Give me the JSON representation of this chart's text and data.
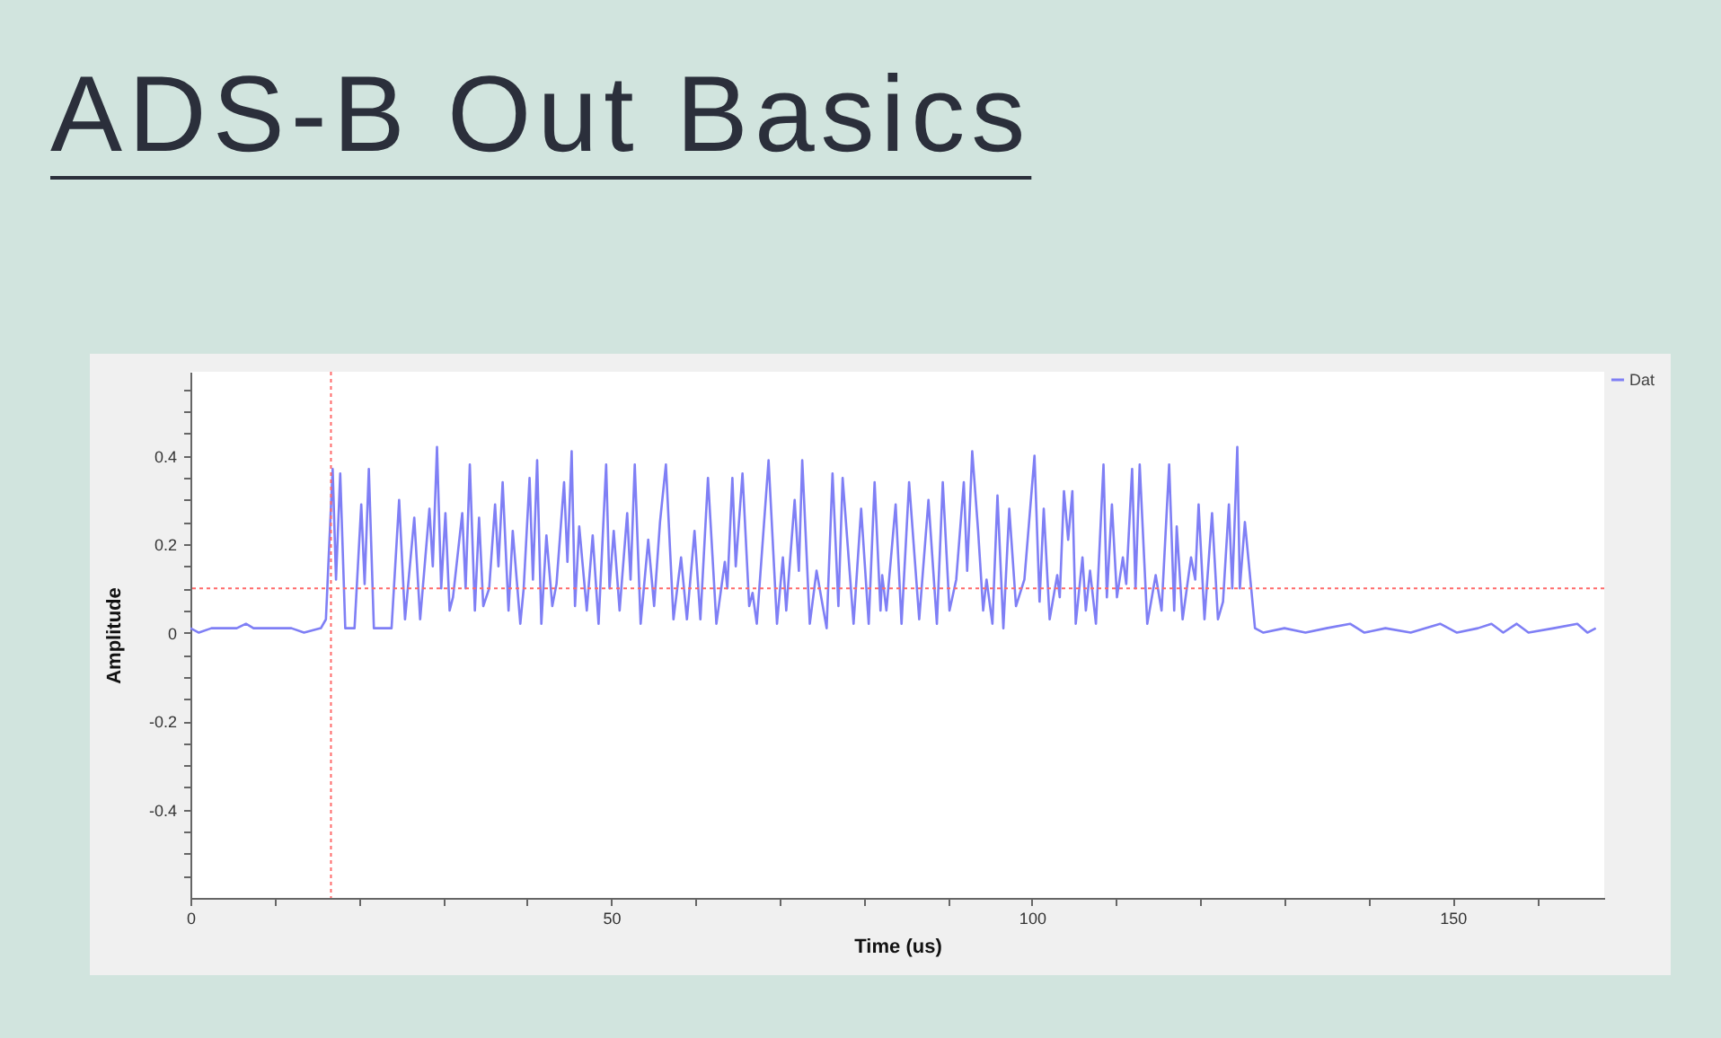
{
  "chart_data": {
    "type": "line",
    "title": "ADS-B Out Basics",
    "xlabel": "Time (us)",
    "ylabel": "Amplitude",
    "x": [
      0,
      1,
      2.5,
      4,
      5.5,
      6.6,
      7.5,
      8.5,
      10,
      12,
      13.5,
      15.5,
      16.1,
      16.9,
      17.3,
      17.8,
      18.4,
      19.5,
      20.3,
      20.7,
      21.2,
      21.8,
      23.9,
      24.8,
      25.5,
      26.6,
      27.3,
      28.4,
      28.8,
      29.3,
      29.8,
      30.3,
      30.8,
      31.2,
      32.3,
      32.7,
      33.2,
      33.8,
      34.3,
      34.8,
      35.5,
      36.2,
      36.6,
      37.1,
      37.8,
      38.3,
      39.2,
      39.6,
      40.3,
      40.7,
      41.2,
      41.7,
      42.3,
      43,
      43.5,
      44.4,
      44.8,
      45.3,
      45.7,
      46.2,
      47.1,
      47.8,
      48.5,
      49.4,
      49.8,
      50.3,
      51,
      51.9,
      52.3,
      52.8,
      53.5,
      54.4,
      55.1,
      55.8,
      56.5,
      57.4,
      58.3,
      59,
      59.9,
      60.6,
      61.5,
      62.5,
      63.5,
      63.8,
      64.4,
      64.8,
      65.6,
      66.4,
      66.8,
      67.3,
      68.7,
      69.7,
      70.4,
      70.8,
      71.8,
      72.3,
      72.7,
      73.6,
      74.4,
      75.6,
      76.3,
      77,
      77.5,
      78.8,
      79.7,
      80.6,
      81.3,
      82,
      82.2,
      82.7,
      83.8,
      84.5,
      85.4,
      86.6,
      87.7,
      88.7,
      89.4,
      90.2,
      91,
      91.9,
      92.3,
      92.9,
      93.6,
      94.2,
      94.6,
      95.3,
      95.9,
      96.6,
      97.3,
      98.1,
      99.1,
      100.3,
      100.9,
      101.4,
      102.1,
      103,
      103.3,
      103.8,
      104.3,
      104.8,
      105.2,
      106,
      106.4,
      106.9,
      107.6,
      108.5,
      108.9,
      109.5,
      110.1,
      110.8,
      111.2,
      111.9,
      112.3,
      112.8,
      113.7,
      114.7,
      115.4,
      116.3,
      116.9,
      117.2,
      117.9,
      118.9,
      119.4,
      119.8,
      120.5,
      121.4,
      122.1,
      122.7,
      123.4,
      123.8,
      124.4,
      124.7,
      125.3,
      126.5,
      127.5,
      130,
      132.5,
      135,
      137.8,
      139.5,
      142,
      145,
      148.5,
      150.5,
      153,
      154.6,
      156,
      157.6,
      159,
      162,
      164.8,
      166,
      167
    ],
    "series": [
      {
        "name": "Dat",
        "color": "#7f7ff5",
        "values": [
          0.01,
          0,
          0.01,
          0.01,
          0.01,
          0.02,
          0.01,
          0.01,
          0.01,
          0.01,
          0,
          0.01,
          0.03,
          0.37,
          0.12,
          0.36,
          0.01,
          0.01,
          0.29,
          0.11,
          0.37,
          0.01,
          0.01,
          0.3,
          0.03,
          0.26,
          0.03,
          0.28,
          0.15,
          0.42,
          0.1,
          0.27,
          0.05,
          0.08,
          0.27,
          0.1,
          0.38,
          0.05,
          0.26,
          0.06,
          0.1,
          0.29,
          0.15,
          0.34,
          0.05,
          0.23,
          0.02,
          0.1,
          0.35,
          0.12,
          0.39,
          0.02,
          0.22,
          0.06,
          0.11,
          0.34,
          0.16,
          0.41,
          0.06,
          0.24,
          0.05,
          0.22,
          0.02,
          0.38,
          0.1,
          0.23,
          0.05,
          0.27,
          0.12,
          0.38,
          0.02,
          0.21,
          0.06,
          0.25,
          0.38,
          0.03,
          0.17,
          0.03,
          0.23,
          0.03,
          0.35,
          0.02,
          0.16,
          0.1,
          0.35,
          0.15,
          0.36,
          0.06,
          0.09,
          0.02,
          0.39,
          0.02,
          0.17,
          0.05,
          0.3,
          0.14,
          0.39,
          0.02,
          0.14,
          0.01,
          0.36,
          0.06,
          0.35,
          0.02,
          0.28,
          0.02,
          0.34,
          0.05,
          0.13,
          0.05,
          0.29,
          0.02,
          0.34,
          0.03,
          0.3,
          0.02,
          0.34,
          0.05,
          0.12,
          0.34,
          0.14,
          0.41,
          0.23,
          0.05,
          0.12,
          0.02,
          0.31,
          0.01,
          0.28,
          0.06,
          0.12,
          0.4,
          0.07,
          0.28,
          0.03,
          0.13,
          0.08,
          0.32,
          0.21,
          0.32,
          0.02,
          0.17,
          0.05,
          0.14,
          0.02,
          0.38,
          0.08,
          0.29,
          0.08,
          0.17,
          0.11,
          0.37,
          0.1,
          0.38,
          0.02,
          0.13,
          0.05,
          0.38,
          0.05,
          0.24,
          0.03,
          0.17,
          0.12,
          0.29,
          0.03,
          0.27,
          0.03,
          0.07,
          0.29,
          0.1,
          0.42,
          0.1,
          0.25,
          0.01,
          0,
          0.01,
          0,
          0.01,
          0.02,
          0,
          0.01,
          0,
          0.02,
          0,
          0.01,
          0.02,
          0,
          0.02,
          0,
          0.01,
          0.02,
          0,
          0.01
        ]
      }
    ],
    "xlim": [
      0,
      168
    ],
    "ylim": [
      -0.6,
      0.59
    ],
    "xticks": [
      0,
      {
        "value": 10,
        "label": null
      },
      {
        "value": 20,
        "label": null
      },
      {
        "value": 30,
        "label": null
      },
      {
        "value": 40,
        "label": null
      },
      50,
      {
        "value": 60,
        "label": null
      },
      {
        "value": 70,
        "label": null
      },
      {
        "value": 80,
        "label": null
      },
      {
        "value": 90,
        "label": null
      },
      100,
      {
        "value": 110,
        "label": null
      },
      {
        "value": 120,
        "label": null
      },
      {
        "value": 130,
        "label": null
      },
      {
        "value": 140,
        "label": null
      },
      150,
      {
        "value": 160,
        "label": null
      }
    ],
    "yticks": [
      {
        "value": -0.55,
        "label": null
      },
      {
        "value": -0.5,
        "label": null
      },
      {
        "value": -0.45,
        "label": null
      },
      -0.4,
      {
        "value": -0.35,
        "label": null
      },
      {
        "value": -0.3,
        "label": null
      },
      {
        "value": -0.25,
        "label": null
      },
      -0.2,
      {
        "value": -0.15,
        "label": null
      },
      {
        "value": -0.1,
        "label": null
      },
      {
        "value": -0.05,
        "label": null
      },
      0,
      {
        "value": 0.05,
        "label": null
      },
      {
        "value": 0.1,
        "label": null
      },
      {
        "value": 0.15,
        "label": null
      },
      0.2,
      {
        "value": 0.25,
        "label": null
      },
      {
        "value": 0.3,
        "label": null
      },
      {
        "value": 0.35,
        "label": null
      },
      0.4,
      {
        "value": 0.45,
        "label": null
      },
      {
        "value": 0.5,
        "label": null
      },
      {
        "value": 0.55,
        "label": null
      }
    ],
    "ref_lines": [
      {
        "axis": "y",
        "value": 0.1,
        "color": "#ff6b6b",
        "line_style": "dotted"
      },
      {
        "axis": "x",
        "value": 16.7,
        "color": "#ff6b6b",
        "line_style": "dotted"
      }
    ],
    "legend": "top right"
  }
}
